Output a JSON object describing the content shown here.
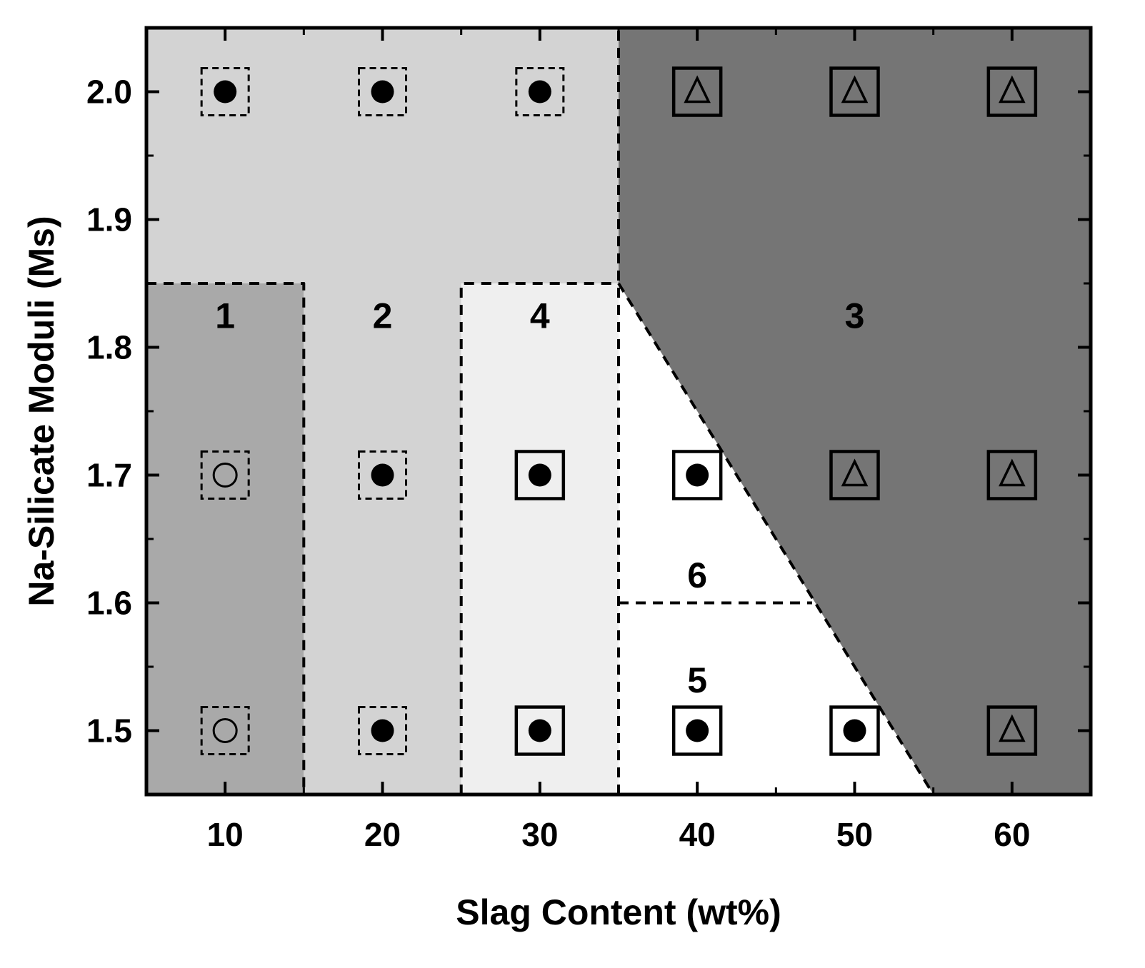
{
  "chart_data": {
    "type": "scatter",
    "title": "",
    "xlabel": "Slag Content (wt%)",
    "ylabel": "Na-Silicate Moduli (Ms)",
    "xlim": [
      5,
      65
    ],
    "ylim": [
      1.45,
      2.05
    ],
    "x_ticks": [
      10,
      20,
      30,
      40,
      50,
      60
    ],
    "x_tick_labels": [
      "10",
      "20",
      "30",
      "40",
      "50",
      "60"
    ],
    "y_ticks": [
      1.5,
      1.6,
      1.7,
      1.8,
      1.9,
      2.0
    ],
    "y_tick_labels": [
      "1.5",
      "1.6",
      "1.7",
      "1.8",
      "1.9",
      "2.0"
    ],
    "grid": false,
    "colors": {
      "region_1": "#a9a9a9",
      "region_2": "#d3d3d3",
      "region_3": "#757575",
      "region_4": "#efefef",
      "region_5_6": "#ffffff"
    },
    "regions": [
      {
        "label": "1",
        "label_pos": [
          10,
          1.815
        ],
        "vertices": [
          [
            5,
            1.45
          ],
          [
            15,
            1.45
          ],
          [
            15,
            1.85
          ],
          [
            5,
            1.85
          ]
        ]
      },
      {
        "label": "2",
        "label_pos": [
          20,
          1.815
        ],
        "vertices": [
          [
            5,
            1.85
          ],
          [
            15,
            1.85
          ],
          [
            15,
            1.45
          ],
          [
            25,
            1.45
          ],
          [
            25,
            1.85
          ],
          [
            35,
            1.85
          ],
          [
            35,
            2.05
          ],
          [
            5,
            2.05
          ]
        ]
      },
      {
        "label": "3",
        "label_pos": [
          50,
          1.815
        ],
        "vertices": [
          [
            35,
            2.05
          ],
          [
            65,
            2.05
          ],
          [
            65,
            1.45
          ],
          [
            55,
            1.45
          ],
          [
            35,
            1.85
          ]
        ]
      },
      {
        "label": "4",
        "label_pos": [
          30,
          1.815
        ],
        "vertices": [
          [
            25,
            1.45
          ],
          [
            35,
            1.45
          ],
          [
            35,
            1.85
          ],
          [
            25,
            1.85
          ]
        ]
      },
      {
        "label": "5",
        "label_pos": [
          40,
          1.53
        ],
        "vertices": [
          [
            35,
            1.45
          ],
          [
            55,
            1.45
          ],
          [
            47.3,
            1.6
          ],
          [
            35,
            1.6
          ]
        ]
      },
      {
        "label": "6",
        "label_pos": [
          40,
          1.612
        ],
        "vertices": [
          [
            35,
            1.6
          ],
          [
            47.3,
            1.6
          ],
          [
            35,
            1.85
          ]
        ]
      }
    ],
    "boundaries": [
      [
        [
          5,
          1.85
        ],
        [
          15,
          1.85
        ],
        [
          15,
          1.45
        ]
      ],
      [
        [
          25,
          1.45
        ],
        [
          25,
          1.85
        ],
        [
          35,
          1.85
        ]
      ],
      [
        [
          35,
          1.45
        ],
        [
          35,
          1.85
        ],
        [
          35,
          2.05
        ]
      ],
      [
        [
          35,
          1.85
        ],
        [
          55,
          1.45
        ]
      ],
      [
        [
          35,
          1.6
        ],
        [
          47.3,
          1.6
        ]
      ]
    ],
    "points": [
      {
        "x": 10,
        "y": 2.0,
        "marker": "filled-circle",
        "box": "dashed"
      },
      {
        "x": 20,
        "y": 2.0,
        "marker": "filled-circle",
        "box": "dashed"
      },
      {
        "x": 30,
        "y": 2.0,
        "marker": "filled-circle",
        "box": "dashed"
      },
      {
        "x": 40,
        "y": 2.0,
        "marker": "triangle",
        "box": "solid"
      },
      {
        "x": 50,
        "y": 2.0,
        "marker": "triangle",
        "box": "solid"
      },
      {
        "x": 60,
        "y": 2.0,
        "marker": "triangle",
        "box": "solid"
      },
      {
        "x": 10,
        "y": 1.7,
        "marker": "open-circle",
        "box": "dashed"
      },
      {
        "x": 20,
        "y": 1.7,
        "marker": "filled-circle",
        "box": "dashed"
      },
      {
        "x": 30,
        "y": 1.7,
        "marker": "filled-circle",
        "box": "solid"
      },
      {
        "x": 40,
        "y": 1.7,
        "marker": "filled-circle",
        "box": "solid"
      },
      {
        "x": 50,
        "y": 1.7,
        "marker": "triangle",
        "box": "solid"
      },
      {
        "x": 60,
        "y": 1.7,
        "marker": "triangle",
        "box": "solid"
      },
      {
        "x": 10,
        "y": 1.5,
        "marker": "open-circle",
        "box": "dashed"
      },
      {
        "x": 20,
        "y": 1.5,
        "marker": "filled-circle",
        "box": "dashed"
      },
      {
        "x": 30,
        "y": 1.5,
        "marker": "filled-circle",
        "box": "solid"
      },
      {
        "x": 40,
        "y": 1.5,
        "marker": "filled-circle",
        "box": "solid"
      },
      {
        "x": 50,
        "y": 1.5,
        "marker": "filled-circle",
        "box": "solid"
      },
      {
        "x": 60,
        "y": 1.5,
        "marker": "triangle",
        "box": "solid"
      }
    ]
  }
}
